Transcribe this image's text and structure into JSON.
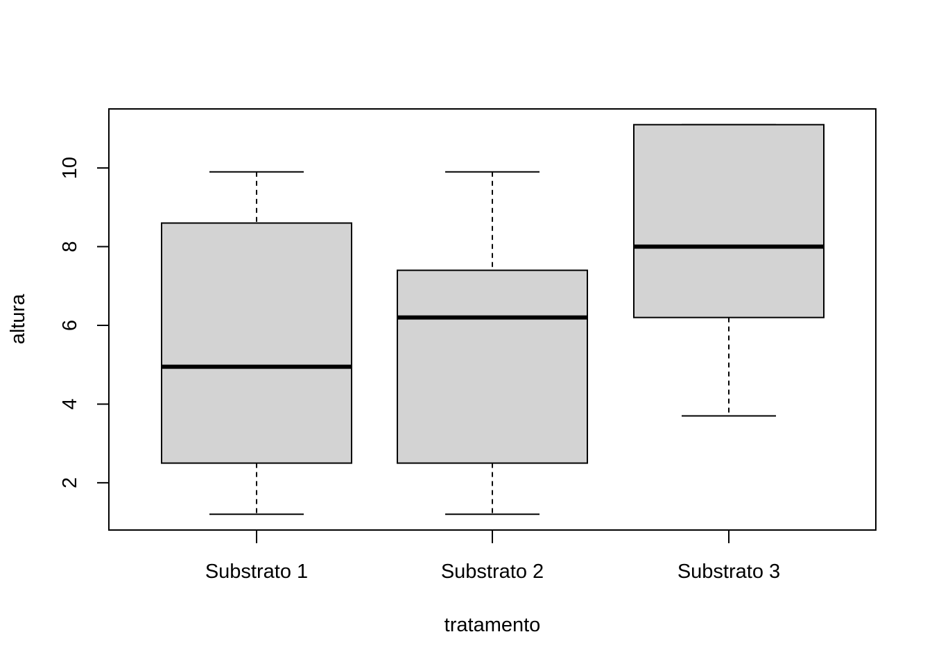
{
  "chart_data": {
    "type": "boxplot",
    "title": "",
    "xlabel": "tratamento",
    "ylabel": "altura",
    "ylim": [
      0.8,
      11.5
    ],
    "yticks": [
      2,
      4,
      6,
      8,
      10
    ],
    "grid": false,
    "categories": [
      "Substrato 1",
      "Substrato 2",
      "Substrato 3"
    ],
    "boxes": [
      {
        "category": "Substrato 1",
        "min": 1.2,
        "q1": 2.5,
        "median": 4.95,
        "q3": 8.6,
        "max": 9.9
      },
      {
        "category": "Substrato 2",
        "min": 1.2,
        "q1": 2.5,
        "median": 6.2,
        "q3": 7.4,
        "max": 9.9
      },
      {
        "category": "Substrato 3",
        "min": 3.7,
        "q1": 6.2,
        "median": 8.0,
        "q3": 11.1,
        "max": 11.1
      }
    ],
    "box_fill": "#d3d3d3"
  }
}
